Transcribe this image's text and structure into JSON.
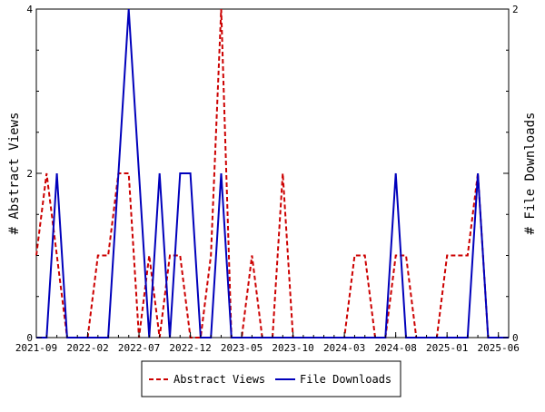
{
  "chart_data": {
    "type": "line",
    "title": "",
    "ylabel_left": "# Abstract Views",
    "ylabel_right": "# File Downloads",
    "ylim_left": [
      0,
      4
    ],
    "ylim_right": [
      0,
      2
    ],
    "yticks_left": [
      "0",
      "2",
      "4"
    ],
    "yticks_right": [
      "0",
      "1",
      "2"
    ],
    "x_tick_labels": [
      "2021-09",
      "2022-02",
      "2022-07",
      "2022-12",
      "2023-05",
      "2023-10",
      "2024-03",
      "2024-08",
      "2025-01",
      "2025-06"
    ],
    "x_range": [
      "2021-09",
      "2025-07"
    ],
    "legend_position": "bottom",
    "grid": false,
    "series": [
      {
        "name": "Abstract Views",
        "axis": "left",
        "color": "#cc0000",
        "dash": "dashed",
        "points": [
          [
            "2021-09",
            1
          ],
          [
            "2021-10",
            2
          ],
          [
            "2021-11",
            1
          ],
          [
            "2021-12",
            0
          ],
          [
            "2022-01",
            0
          ],
          [
            "2022-02",
            0
          ],
          [
            "2022-03",
            1
          ],
          [
            "2022-04",
            1
          ],
          [
            "2022-05",
            2
          ],
          [
            "2022-06",
            2
          ],
          [
            "2022-07",
            0
          ],
          [
            "2022-08",
            1
          ],
          [
            "2022-09",
            0
          ],
          [
            "2022-10",
            1
          ],
          [
            "2022-11",
            1
          ],
          [
            "2022-12",
            0
          ],
          [
            "2023-01",
            0
          ],
          [
            "2023-02",
            1
          ],
          [
            "2023-03",
            4
          ],
          [
            "2023-04",
            0
          ],
          [
            "2023-05",
            0
          ],
          [
            "2023-06",
            1
          ],
          [
            "2023-07",
            0
          ],
          [
            "2023-08",
            0
          ],
          [
            "2023-09",
            2
          ],
          [
            "2023-10",
            0
          ],
          [
            "2023-11",
            0
          ],
          [
            "2023-12",
            0
          ],
          [
            "2024-01",
            0
          ],
          [
            "2024-02",
            0
          ],
          [
            "2024-03",
            0
          ],
          [
            "2024-04",
            1
          ],
          [
            "2024-05",
            1
          ],
          [
            "2024-06",
            0
          ],
          [
            "2024-07",
            0
          ],
          [
            "2024-08",
            1
          ],
          [
            "2024-09",
            1
          ],
          [
            "2024-10",
            0
          ],
          [
            "2024-11",
            0
          ],
          [
            "2024-12",
            0
          ],
          [
            "2025-01",
            1
          ],
          [
            "2025-02",
            1
          ],
          [
            "2025-03",
            1
          ],
          [
            "2025-04",
            2
          ],
          [
            "2025-05",
            0
          ],
          [
            "2025-06",
            0
          ],
          [
            "2025-07",
            0
          ]
        ]
      },
      {
        "name": "File Downloads",
        "axis": "right",
        "color": "#0000bb",
        "dash": "solid",
        "points": [
          [
            "2021-09",
            0
          ],
          [
            "2021-10",
            0
          ],
          [
            "2021-11",
            1
          ],
          [
            "2021-12",
            0
          ],
          [
            "2022-01",
            0
          ],
          [
            "2022-02",
            0
          ],
          [
            "2022-03",
            0
          ],
          [
            "2022-04",
            0
          ],
          [
            "2022-05",
            1
          ],
          [
            "2022-06",
            2
          ],
          [
            "2022-07",
            1
          ],
          [
            "2022-08",
            0
          ],
          [
            "2022-09",
            1
          ],
          [
            "2022-10",
            0
          ],
          [
            "2022-11",
            1
          ],
          [
            "2022-12",
            1
          ],
          [
            "2023-01",
            0
          ],
          [
            "2023-02",
            0
          ],
          [
            "2023-03",
            1
          ],
          [
            "2023-04",
            0
          ],
          [
            "2023-05",
            0
          ],
          [
            "2023-06",
            0
          ],
          [
            "2023-07",
            0
          ],
          [
            "2023-08",
            0
          ],
          [
            "2023-09",
            0
          ],
          [
            "2023-10",
            0
          ],
          [
            "2023-11",
            0
          ],
          [
            "2023-12",
            0
          ],
          [
            "2024-01",
            0
          ],
          [
            "2024-02",
            0
          ],
          [
            "2024-03",
            0
          ],
          [
            "2024-04",
            0
          ],
          [
            "2024-05",
            0
          ],
          [
            "2024-06",
            0
          ],
          [
            "2024-07",
            0
          ],
          [
            "2024-08",
            1
          ],
          [
            "2024-09",
            0
          ],
          [
            "2024-10",
            0
          ],
          [
            "2024-11",
            0
          ],
          [
            "2024-12",
            0
          ],
          [
            "2025-01",
            0
          ],
          [
            "2025-02",
            0
          ],
          [
            "2025-03",
            0
          ],
          [
            "2025-04",
            1
          ],
          [
            "2025-05",
            0
          ],
          [
            "2025-06",
            0
          ],
          [
            "2025-07",
            0
          ]
        ]
      }
    ]
  }
}
